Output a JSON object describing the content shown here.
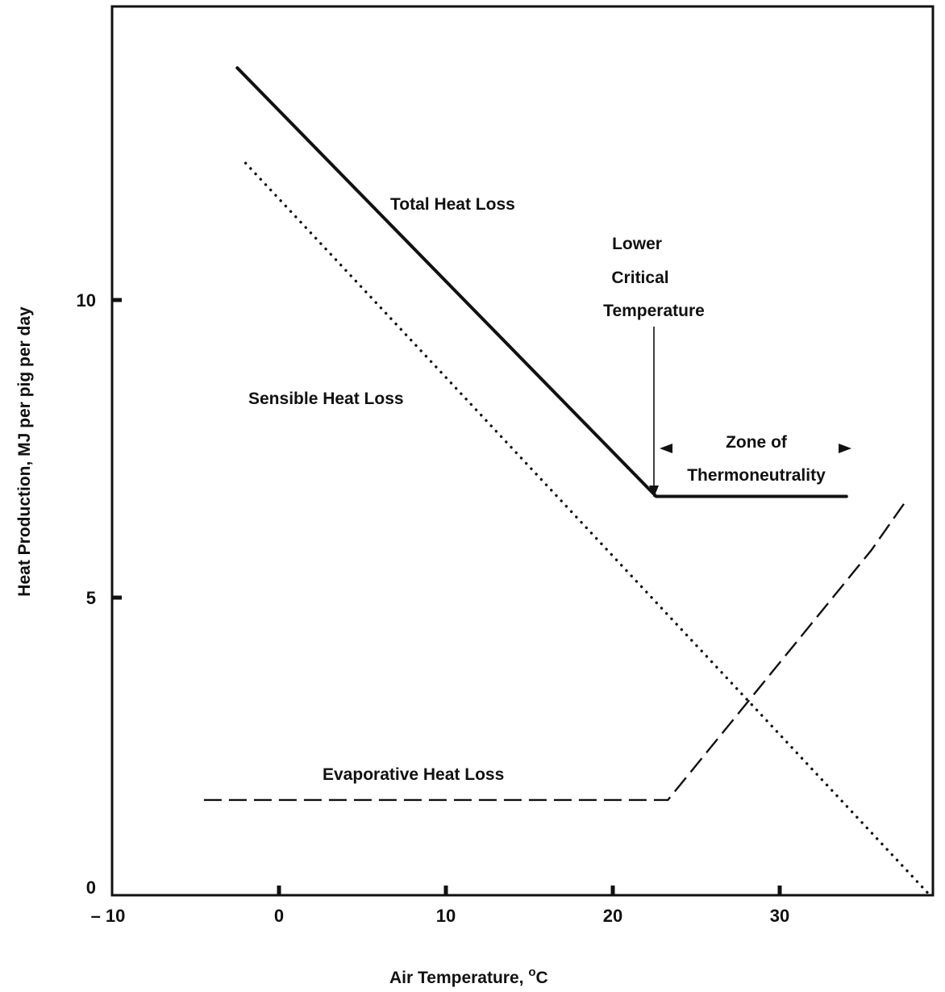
{
  "chart_data": {
    "type": "line",
    "xlabel": "Air Temperature, °C",
    "xlabel_main": "Air Temperature, ",
    "xlabel_unit": "C",
    "xlabel_degree": "o",
    "ylabel": "Heat Production, MJ per pig per day",
    "xlim": [
      -10,
      39
    ],
    "ylim": [
      0,
      14.3
    ],
    "x_ticks": [
      -10,
      0,
      10,
      20,
      30
    ],
    "x_tick_labels": [
      "– 10",
      "0",
      "10",
      "20",
      "30"
    ],
    "y_ticks": [
      0,
      5,
      10
    ],
    "y_tick_labels": [
      "0",
      "5",
      "10"
    ],
    "grid": false,
    "legend": "none",
    "series": [
      {
        "name": "Total Heat Loss",
        "style": "solid",
        "color": "#111111",
        "x": [
          -2.5,
          22.6,
          34
        ],
        "y": [
          13.9,
          6.7,
          6.7
        ]
      },
      {
        "name": "Sensible Heat Loss",
        "style": "dotted",
        "color": "#111111",
        "x": [
          -2,
          39
        ],
        "y": [
          12.3,
          0
        ]
      },
      {
        "name": "Evaporative Heat Loss",
        "style": "dashed",
        "color": "#111111",
        "x": [
          -4.5,
          23.3,
          35.5,
          37.5
        ],
        "y": [
          1.6,
          1.6,
          5.8,
          6.6
        ]
      }
    ],
    "annotations": {
      "total": "Total Heat Loss",
      "sensible": "Sensible Heat Loss",
      "evaporative": "Evaporative Heat Loss",
      "lct_line1": "Lower",
      "lct_line2": "Critical",
      "lct_line3": "Temperature",
      "zone_line1": "Zone of",
      "zone_line2": "Thermoneutrality"
    },
    "lower_critical_temperature": 22.6,
    "zone_of_thermoneutrality": [
      22.6,
      34
    ]
  }
}
